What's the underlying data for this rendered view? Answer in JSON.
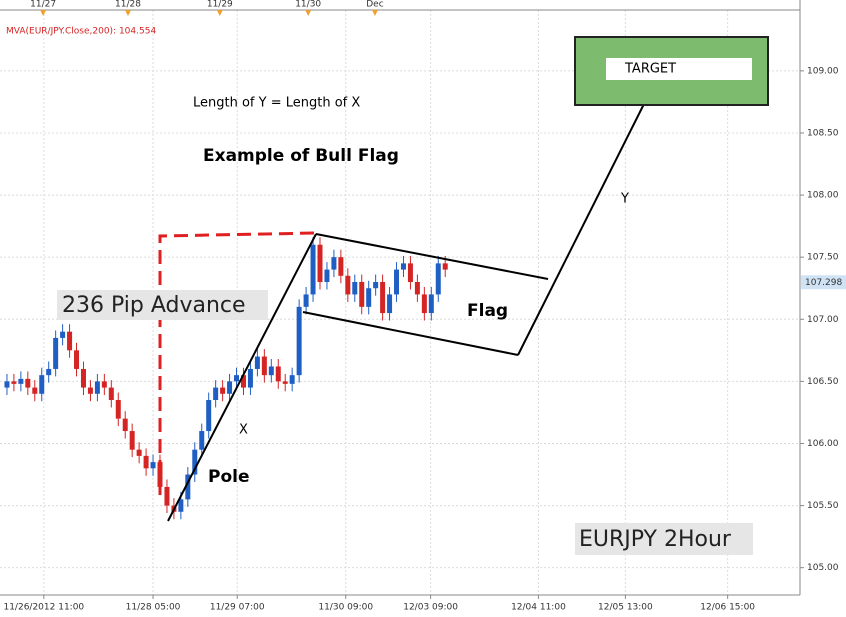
{
  "chart_data": {
    "type": "candlestick",
    "indicator_label": "MVA(EUR/JPY.Close,200): 104.554",
    "annotations": {
      "length_note": "Length of Y = Length of X",
      "title": "Example of Bull Flag",
      "advance": "236 Pip Advance",
      "x_leg": "X",
      "y_leg": "Y",
      "pole": "Pole",
      "flag": "Flag",
      "target": "TARGET",
      "instrument": "EURJPY 2Hour"
    },
    "current_price": 107.298,
    "up_color": "#1f5fc4",
    "down_color": "#d42424",
    "x": [
      0,
      1,
      2,
      3,
      4,
      5,
      6,
      7,
      8,
      9,
      10,
      11,
      12,
      13,
      14,
      15,
      16,
      17,
      18,
      19,
      20,
      21,
      22,
      23,
      24,
      25,
      26,
      27,
      28,
      29,
      30,
      31,
      32,
      33,
      34,
      35,
      36,
      37,
      38,
      39,
      40,
      41,
      42,
      43,
      44,
      45,
      46,
      47,
      48,
      49,
      50,
      51,
      52,
      53,
      54,
      55,
      56,
      57,
      58,
      59,
      60,
      61,
      62,
      63
    ],
    "open": [
      106.45,
      106.5,
      106.48,
      106.52,
      106.45,
      106.4,
      106.55,
      106.6,
      106.85,
      106.9,
      106.75,
      106.6,
      106.45,
      106.4,
      106.5,
      106.45,
      106.35,
      106.2,
      106.1,
      105.95,
      105.9,
      105.8,
      105.85,
      105.65,
      105.5,
      105.45,
      105.55,
      105.75,
      105.95,
      106.1,
      106.35,
      106.45,
      106.4,
      106.5,
      106.55,
      106.45,
      106.6,
      106.7,
      106.55,
      106.62,
      106.5,
      106.48,
      106.55,
      107.1,
      107.2,
      107.6,
      107.3,
      107.4,
      107.5,
      107.35,
      107.2,
      107.3,
      107.1,
      107.25,
      107.3,
      107.05,
      107.2,
      107.4,
      107.45,
      107.3,
      107.2,
      107.05,
      107.2,
      107.45
    ],
    "high": [
      106.56,
      106.56,
      106.58,
      106.58,
      106.51,
      106.61,
      106.66,
      106.91,
      106.96,
      106.96,
      106.81,
      106.66,
      106.51,
      106.56,
      106.56,
      106.51,
      106.41,
      106.26,
      106.16,
      106.01,
      105.96,
      105.91,
      105.91,
      105.71,
      105.56,
      105.61,
      105.81,
      106.01,
      106.16,
      106.41,
      106.51,
      106.51,
      106.56,
      106.61,
      106.61,
      106.66,
      106.76,
      106.76,
      106.68,
      106.68,
      106.56,
      106.61,
      107.16,
      107.26,
      107.66,
      107.66,
      107.46,
      107.56,
      107.56,
      107.41,
      107.36,
      107.36,
      107.31,
      107.36,
      107.36,
      107.26,
      107.46,
      107.51,
      107.51,
      107.36,
      107.26,
      107.26,
      107.51,
      107.51
    ],
    "low": [
      106.39,
      106.42,
      106.42,
      106.39,
      106.34,
      106.34,
      106.49,
      106.54,
      106.79,
      106.69,
      106.54,
      106.39,
      106.34,
      106.34,
      106.39,
      106.29,
      106.14,
      106.04,
      105.89,
      105.84,
      105.74,
      105.74,
      105.59,
      105.44,
      105.39,
      105.39,
      105.49,
      105.69,
      105.89,
      106.04,
      106.29,
      106.34,
      106.34,
      106.44,
      106.39,
      106.39,
      106.54,
      106.49,
      106.49,
      106.44,
      106.42,
      106.42,
      106.49,
      107.04,
      107.14,
      107.24,
      107.24,
      107.34,
      107.29,
      107.14,
      107.14,
      107.04,
      107.04,
      107.19,
      106.99,
      106.99,
      107.14,
      107.34,
      107.24,
      107.14,
      106.99,
      106.99,
      107.14,
      107.34
    ],
    "close": [
      106.5,
      106.48,
      106.52,
      106.45,
      106.4,
      106.55,
      106.6,
      106.85,
      106.9,
      106.75,
      106.6,
      106.45,
      106.4,
      106.5,
      106.45,
      106.35,
      106.2,
      106.1,
      105.95,
      105.9,
      105.8,
      105.85,
      105.65,
      105.5,
      105.45,
      105.55,
      105.75,
      105.95,
      106.1,
      106.35,
      106.45,
      106.4,
      106.5,
      106.55,
      106.45,
      106.6,
      106.7,
      106.55,
      106.62,
      106.5,
      106.48,
      106.55,
      107.1,
      107.2,
      107.6,
      107.3,
      107.4,
      107.5,
      107.35,
      107.2,
      107.3,
      107.1,
      107.25,
      107.3,
      107.05,
      107.2,
      107.4,
      107.45,
      107.3,
      107.2,
      107.05,
      107.2,
      107.45,
      107.4
    ],
    "xlim": [
      -1,
      114
    ],
    "ylim": [
      104.78,
      109.49
    ],
    "yticks": [
      {
        "value": 105,
        "label": "105.00"
      },
      {
        "value": 105.5,
        "label": "105.50"
      },
      {
        "value": 106,
        "label": "106.00"
      },
      {
        "value": 106.5,
        "label": "106.50"
      },
      {
        "value": 107,
        "label": "107.00"
      },
      {
        "value": 107.5,
        "label": "107.50"
      },
      {
        "value": 108,
        "label": "108.00"
      },
      {
        "value": 108.5,
        "label": "108.50"
      },
      {
        "value": 109,
        "label": "109.00"
      }
    ],
    "xticks": [
      {
        "value": 5.3,
        "label": "11/26/2012 11:00"
      },
      {
        "value": 21,
        "label": "11/28 05:00"
      },
      {
        "value": 33.1,
        "label": "11/29 07:00"
      },
      {
        "value": 48.7,
        "label": "11/30 09:00"
      },
      {
        "value": 60.9,
        "label": "12/03 09:00"
      },
      {
        "value": 76.4,
        "label": "12/04 11:00"
      },
      {
        "value": 88.9,
        "label": "12/05 13:00"
      },
      {
        "value": 103.6,
        "label": "12/06 15:00"
      }
    ],
    "x2ticks": [
      {
        "value": 5.2,
        "label": "11/27"
      },
      {
        "value": 17.4,
        "label": "11/28"
      },
      {
        "value": 30.6,
        "label": "11/29"
      },
      {
        "value": 43.3,
        "label": "11/30"
      },
      {
        "value": 52.9,
        "label": "Dec"
      }
    ],
    "grid": true
  }
}
